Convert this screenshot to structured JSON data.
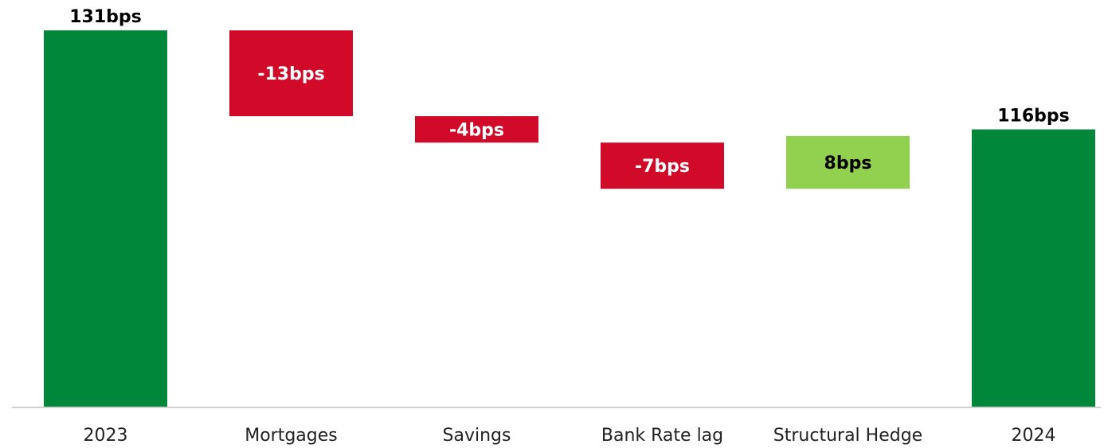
{
  "chart_data": {
    "type": "waterfall",
    "categories": [
      "2023",
      "Mortgages",
      "Savings",
      "Bank Rate lag",
      "Structural Hedge",
      "2024"
    ],
    "values": [
      131,
      -13,
      -4,
      -7,
      8,
      116
    ],
    "value_labels": [
      "131bps",
      "-13bps",
      "-4bps",
      "-7bps",
      "8bps",
      "116bps"
    ],
    "is_total": [
      true,
      false,
      false,
      false,
      false,
      true
    ],
    "colors": [
      "#00873a",
      "#d20a2a",
      "#d20a2a",
      "#d20a2a",
      "#92d050",
      "#00873a"
    ],
    "ylim": [
      74,
      135
    ]
  }
}
